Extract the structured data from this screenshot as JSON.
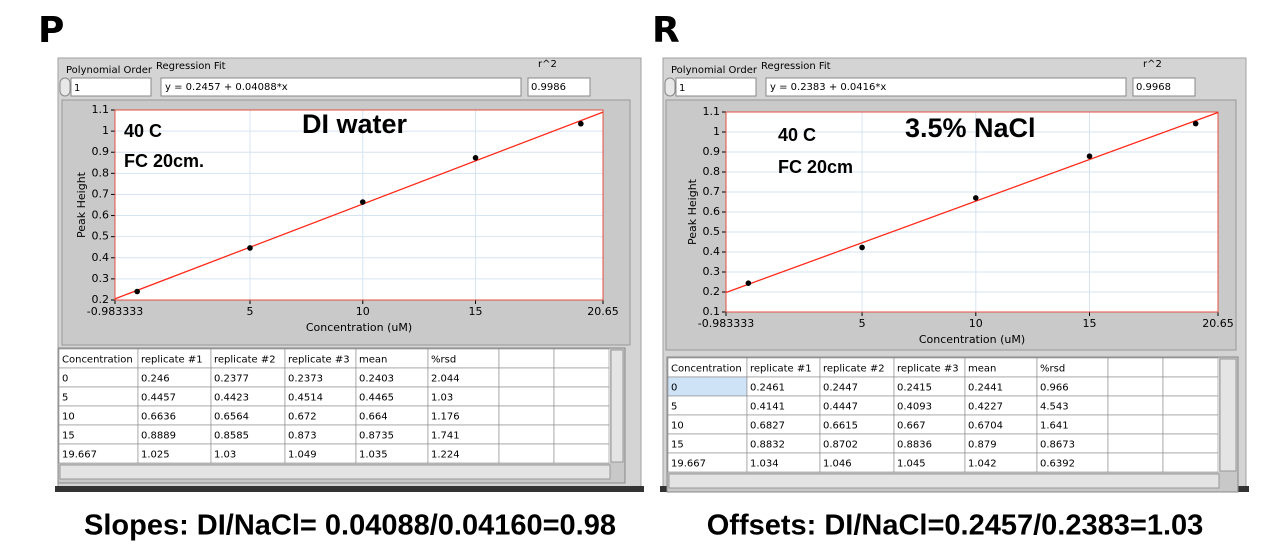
{
  "chart_data": [
    {
      "type": "scatter",
      "x_label": "Concentration (uM)",
      "y_label": "Peak Height",
      "annotations": [
        "40 C",
        "FC 20cm.",
        "DI water"
      ],
      "x": [
        0,
        5,
        10,
        15,
        19.667
      ],
      "values": [
        0.2403,
        0.4465,
        0.664,
        0.8735,
        1.035
      ],
      "color": "#000000",
      "line": {
        "x": [
          -0.983333,
          20.65
        ],
        "values": [
          0.2055,
          1.0899
        ],
        "color": "#ff2a1a"
      },
      "xlim": [
        -0.983333,
        20.65
      ],
      "xticks": [
        -0.983333,
        5,
        10,
        15,
        20.65
      ],
      "ylim": [
        0.2,
        1.1
      ],
      "yticks": [
        0.2,
        0.3,
        0.4,
        0.5,
        0.6,
        0.7,
        0.8,
        0.9,
        1,
        1.1
      ],
      "grid": true
    },
    {
      "type": "scatter",
      "x_label": "Concentration (uM)",
      "y_label": "Peak Height",
      "annotations": [
        "40 C",
        "FC 20cm",
        "3.5% NaCl"
      ],
      "x": [
        0,
        5,
        10,
        15,
        19.667
      ],
      "values": [
        0.2441,
        0.4227,
        0.6704,
        0.879,
        1.042
      ],
      "color": "#000000",
      "line": {
        "x": [
          -0.983333,
          20.65
        ],
        "values": [
          0.1974,
          1.0974
        ],
        "color": "#ff2a1a"
      },
      "xlim": [
        -0.983333,
        20.65
      ],
      "xticks": [
        -0.983333,
        5,
        10,
        15,
        20.65
      ],
      "ylim": [
        0.1,
        1.1
      ],
      "yticks": [
        0.1,
        0.2,
        0.3,
        0.4,
        0.5,
        0.6,
        0.7,
        0.8,
        0.9,
        1,
        1.1
      ],
      "grid": true
    }
  ],
  "panels": [
    {
      "label": "P",
      "order_label": "Polynomial Order",
      "order": "1",
      "fit_label": "Regression Fit",
      "fit": "y = 0.2457 + 0.04088*x",
      "r2_label": "r^2",
      "r2": "0.9986",
      "table": {
        "header": [
          "Concentration",
          "replicate #1",
          "replicate #2",
          "replicate #3",
          "mean",
          "%rsd"
        ],
        "rows": [
          [
            "0",
            "0.246",
            "0.2377",
            "0.2373",
            "0.2403",
            "2.044"
          ],
          [
            "5",
            "0.4457",
            "0.4423",
            "0.4514",
            "0.4465",
            "1.03"
          ],
          [
            "10",
            "0.6636",
            "0.6564",
            "0.672",
            "0.664",
            "1.176"
          ],
          [
            "15",
            "0.8889",
            "0.8585",
            "0.873",
            "0.8735",
            "1.741"
          ],
          [
            "19.667",
            "1.025",
            "1.03",
            "1.049",
            "1.035",
            "1.224"
          ]
        ]
      }
    },
    {
      "label": "R",
      "order_label": "Polynomial Order",
      "order": "1",
      "fit_label": "Regression Fit",
      "fit": "y = 0.2383 + 0.0416*x",
      "r2_label": "r^2",
      "r2": "0.9968",
      "table": {
        "header": [
          "Concentration",
          "replicate #1",
          "replicate #2",
          "replicate #3",
          "mean",
          "%rsd"
        ],
        "rows": [
          [
            "0",
            "0.2461",
            "0.2447",
            "0.2415",
            "0.2441",
            "0.966"
          ],
          [
            "5",
            "0.4141",
            "0.4447",
            "0.4093",
            "0.4227",
            "4.543"
          ],
          [
            "10",
            "0.6827",
            "0.6615",
            "0.667",
            "0.6704",
            "1.641"
          ],
          [
            "15",
            "0.8832",
            "0.8702",
            "0.8836",
            "0.879",
            "0.8673"
          ],
          [
            "19.667",
            "1.034",
            "1.046",
            "1.045",
            "1.042",
            "0.6392"
          ]
        ]
      }
    }
  ],
  "footer": {
    "slopes": "Slopes: DI/NaCl= 0.04088/0.04160=0.98",
    "offsets": "Offsets: DI/NaCl=0.2457/0.2383=1.03"
  }
}
